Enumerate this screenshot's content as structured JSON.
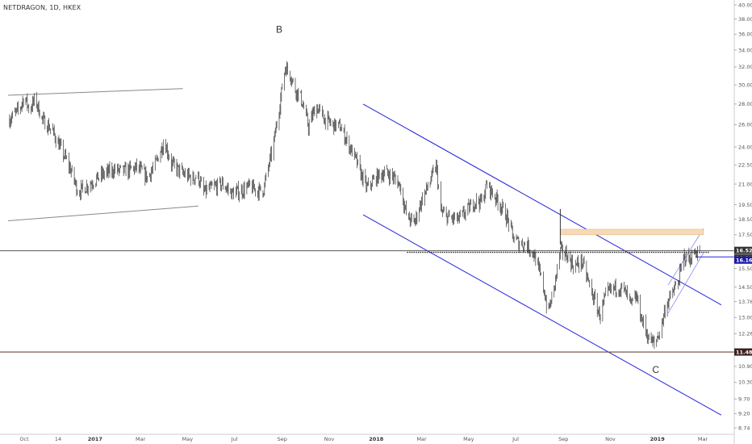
{
  "symbol_title": "NETDRAGON, 1D, HKEX",
  "colors": {
    "candle": "#333333",
    "channel": "#2222dd",
    "trendline": "#888888",
    "level_line": "#555555",
    "support_line": "#6d4a3a",
    "zone": "#f7d9b5",
    "tag_dark": "#333333",
    "tag_blue": "#1a1aaa",
    "tag_support": "#3d1f1f"
  },
  "wave_labels": [
    "B",
    "C"
  ],
  "price_tags": [
    {
      "label": "16.52",
      "value": 16.52,
      "style": "dark"
    },
    {
      "label": "16.50",
      "value": 16.5,
      "style": "dark"
    },
    {
      "label": "16.16",
      "value": 16.16,
      "style": "blue"
    },
    {
      "label": "11.48",
      "value": 11.48,
      "style": "support"
    }
  ],
  "chart_data": {
    "type": "candlestick",
    "title": "NETDRAGON, 1D, HKEX",
    "y_scale": "log",
    "ylim": [
      8.74,
      40.0
    ],
    "y_ticks": [
      "40.00",
      "38.00",
      "36.00",
      "34.00",
      "32.00",
      "30.00",
      "28.00",
      "26.00",
      "24.00",
      "22.50",
      "21.00",
      "19.50",
      "18.50",
      "17.50",
      "16.50",
      "15.50",
      "14.50",
      "13.76",
      "13.00",
      "12.26",
      "11.50",
      "10.90",
      "10.30",
      "9.70",
      "9.20",
      "8.74"
    ],
    "x_ticks": [
      {
        "label": "Oct",
        "date": "2016-10-01",
        "bold": false
      },
      {
        "label": "14",
        "date": "2016-11-14",
        "bold": false
      },
      {
        "label": "2017",
        "date": "2017-01-01",
        "bold": true
      },
      {
        "label": "Mar",
        "date": "2017-03-01",
        "bold": false
      },
      {
        "label": "May",
        "date": "2017-05-01",
        "bold": false
      },
      {
        "label": "Jul",
        "date": "2017-07-01",
        "bold": false
      },
      {
        "label": "Sep",
        "date": "2017-09-01",
        "bold": false
      },
      {
        "label": "Nov",
        "date": "2017-11-01",
        "bold": false
      },
      {
        "label": "2018",
        "date": "2018-01-01",
        "bold": true
      },
      {
        "label": "Mar",
        "date": "2018-03-01",
        "bold": false
      },
      {
        "label": "May",
        "date": "2018-05-01",
        "bold": false
      },
      {
        "label": "Jul",
        "date": "2018-07-01",
        "bold": false
      },
      {
        "label": "Sep",
        "date": "2018-09-01",
        "bold": false
      },
      {
        "label": "Nov",
        "date": "2018-11-01",
        "bold": false
      },
      {
        "label": "2019",
        "date": "2019-01-01",
        "bold": true
      },
      {
        "label": "Mar",
        "date": "2019-03-01",
        "bold": false
      }
    ],
    "price_path": [
      [
        "2016-09-12",
        26.5
      ],
      [
        "2016-09-25",
        27.5
      ],
      [
        "2016-10-01",
        28.8
      ],
      [
        "2016-10-08",
        27.4
      ],
      [
        "2016-10-15",
        28.5
      ],
      [
        "2016-10-25",
        26.4
      ],
      [
        "2016-11-05",
        25.6
      ],
      [
        "2016-11-18",
        23.8
      ],
      [
        "2016-12-01",
        22.0
      ],
      [
        "2016-12-10",
        20.4
      ],
      [
        "2016-12-20",
        20.8
      ],
      [
        "2017-01-10",
        21.7
      ],
      [
        "2017-01-25",
        22.1
      ],
      [
        "2017-02-10",
        22.0
      ],
      [
        "2017-02-25",
        22.3
      ],
      [
        "2017-03-10",
        21.5
      ],
      [
        "2017-03-20",
        22.5
      ],
      [
        "2017-04-01",
        24.5
      ],
      [
        "2017-04-10",
        22.6
      ],
      [
        "2017-04-25",
        21.8
      ],
      [
        "2017-05-08",
        21.4
      ],
      [
        "2017-05-14",
        21.7
      ],
      [
        "2017-05-22",
        20.4
      ],
      [
        "2017-06-05",
        20.8
      ],
      [
        "2017-06-15",
        21.0
      ],
      [
        "2017-06-28",
        20.3
      ],
      [
        "2017-07-10",
        20.5
      ],
      [
        "2017-07-20",
        20.8
      ],
      [
        "2017-08-01",
        20.5
      ],
      [
        "2017-08-08",
        20.6
      ],
      [
        "2017-08-20",
        24.0
      ],
      [
        "2017-08-28",
        27.5
      ],
      [
        "2017-09-05",
        32.0
      ],
      [
        "2017-09-12",
        31.0
      ],
      [
        "2017-09-18",
        29.5
      ],
      [
        "2017-09-25",
        28.7
      ],
      [
        "2017-10-05",
        25.8
      ],
      [
        "2017-10-15",
        27.8
      ],
      [
        "2017-10-25",
        26.6
      ],
      [
        "2017-11-05",
        26.0
      ],
      [
        "2017-11-15",
        25.8
      ],
      [
        "2017-11-25",
        24.4
      ],
      [
        "2017-12-05",
        23.0
      ],
      [
        "2017-12-12",
        21.8
      ],
      [
        "2017-12-20",
        20.7
      ],
      [
        "2018-01-01",
        21.5
      ],
      [
        "2018-01-12",
        21.9
      ],
      [
        "2018-01-22",
        21.6
      ],
      [
        "2018-02-01",
        20.9
      ],
      [
        "2018-02-10",
        18.6
      ],
      [
        "2018-02-20",
        18.3
      ],
      [
        "2018-03-01",
        19.8
      ],
      [
        "2018-03-12",
        21.2
      ],
      [
        "2018-03-20",
        22.4
      ],
      [
        "2018-03-26",
        19.0
      ],
      [
        "2018-04-05",
        18.6
      ],
      [
        "2018-04-18",
        18.5
      ],
      [
        "2018-05-01",
        19.2
      ],
      [
        "2018-05-10",
        19.8
      ],
      [
        "2018-05-18",
        19.7
      ],
      [
        "2018-05-25",
        21.0
      ],
      [
        "2018-06-01",
        20.3
      ],
      [
        "2018-06-10",
        19.6
      ],
      [
        "2018-06-20",
        18.6
      ],
      [
        "2018-06-28",
        17.3
      ],
      [
        "2018-07-05",
        17.0
      ],
      [
        "2018-07-15",
        16.9
      ],
      [
        "2018-07-25",
        16.3
      ],
      [
        "2018-08-05",
        14.7
      ],
      [
        "2018-08-12",
        13.2
      ],
      [
        "2018-08-20",
        14.4
      ],
      [
        "2018-08-28",
        16.5
      ],
      [
        "2018-09-05",
        16.3
      ],
      [
        "2018-09-15",
        15.6
      ],
      [
        "2018-09-25",
        15.9
      ],
      [
        "2018-10-08",
        14.2
      ],
      [
        "2018-10-18",
        13.1
      ],
      [
        "2018-10-28",
        14.2
      ],
      [
        "2018-11-08",
        14.5
      ],
      [
        "2018-11-18",
        14.4
      ],
      [
        "2018-11-28",
        13.6
      ],
      [
        "2018-12-05",
        14.0
      ],
      [
        "2018-12-12",
        12.9
      ],
      [
        "2018-12-20",
        12.1
      ],
      [
        "2018-12-28",
        11.8
      ],
      [
        "2019-01-05",
        12.4
      ],
      [
        "2019-01-12",
        13.6
      ],
      [
        "2019-01-20",
        14.1
      ],
      [
        "2019-01-28",
        14.8
      ],
      [
        "2019-02-05",
        16.2
      ],
      [
        "2019-02-12",
        16.0
      ],
      [
        "2019-02-20",
        16.5
      ],
      [
        "2019-02-25",
        16.4
      ]
    ],
    "drawings": {
      "top_trendline": [
        [
          "2016-09-10",
          28.9
        ],
        [
          "2017-04-25",
          29.6
        ]
      ],
      "bottom_trendline": [
        [
          "2016-09-10",
          18.4
        ],
        [
          "2017-05-15",
          19.4
        ]
      ],
      "channel_upper": [
        [
          "2017-12-15",
          28.0
        ],
        [
          "2019-03-25",
          13.6
        ]
      ],
      "channel_lower": [
        [
          "2017-12-15",
          18.8
        ],
        [
          "2019-03-25",
          9.15
        ]
      ],
      "level_line": 16.52,
      "dotted_level": {
        "value": 16.5,
        "from": "2018-02-10",
        "to": "2019-03-10"
      },
      "support_line": 11.48,
      "zone": {
        "from": "2018-08-28",
        "to": "2019-03-02",
        "low": 17.5,
        "high": 17.85
      },
      "blue_ray": {
        "value": 16.16,
        "from": "2019-02-20"
      },
      "wedge_upper": [
        [
          "2019-01-15",
          14.6
        ],
        [
          "2019-03-02",
          17.9
        ]
      ],
      "wedge_lower": [
        [
          "2019-01-15",
          13.2
        ],
        [
          "2019-03-02",
          16.4
        ]
      ],
      "spike": {
        "date": "2018-08-28",
        "high": 19.2,
        "low": 16.9
      }
    },
    "wave_points": [
      {
        "label": "B",
        "date": "2017-08-28",
        "price": 36.2
      },
      {
        "label": "C",
        "date": "2018-12-30",
        "price": 10.65
      }
    ]
  }
}
